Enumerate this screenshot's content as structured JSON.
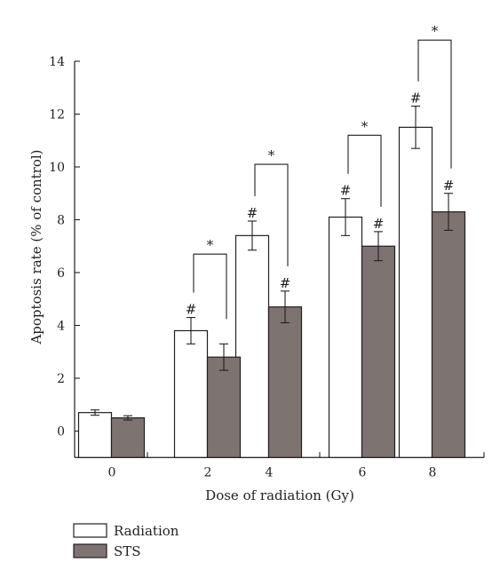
{
  "chart_data": {
    "type": "bar",
    "xlabel": "Dose of radiation (Gy)",
    "ylabel": "Apoptosis rate (% of control)",
    "ylim": [
      -1,
      14
    ],
    "yticks": [
      0,
      2,
      4,
      6,
      8,
      10,
      12,
      14
    ],
    "categories": [
      "0",
      "2",
      "4",
      "6",
      "8"
    ],
    "legend_position": "bottom-left",
    "grid": false,
    "series": [
      {
        "name": "Radiation",
        "color": "#ffffff",
        "values": [
          0.7,
          3.8,
          7.4,
          8.1,
          11.5
        ],
        "errors": [
          0.1,
          0.5,
          0.55,
          0.7,
          0.8
        ],
        "markers": [
          "",
          "#",
          "#",
          "#",
          "#"
        ]
      },
      {
        "name": "STS",
        "color": "#7d7370",
        "values": [
          0.5,
          2.8,
          4.7,
          7.0,
          8.3
        ],
        "errors": [
          0.08,
          0.5,
          0.6,
          0.55,
          0.7
        ],
        "markers": [
          "",
          "",
          "#",
          "#",
          "#"
        ]
      }
    ],
    "significance": [
      {
        "category": "2",
        "label": "*",
        "top": 6.7
      },
      {
        "category": "4",
        "label": "*",
        "top": 10.1
      },
      {
        "category": "6",
        "label": "*",
        "top": 11.2
      },
      {
        "category": "8",
        "label": "*",
        "top": 14.8
      }
    ]
  }
}
